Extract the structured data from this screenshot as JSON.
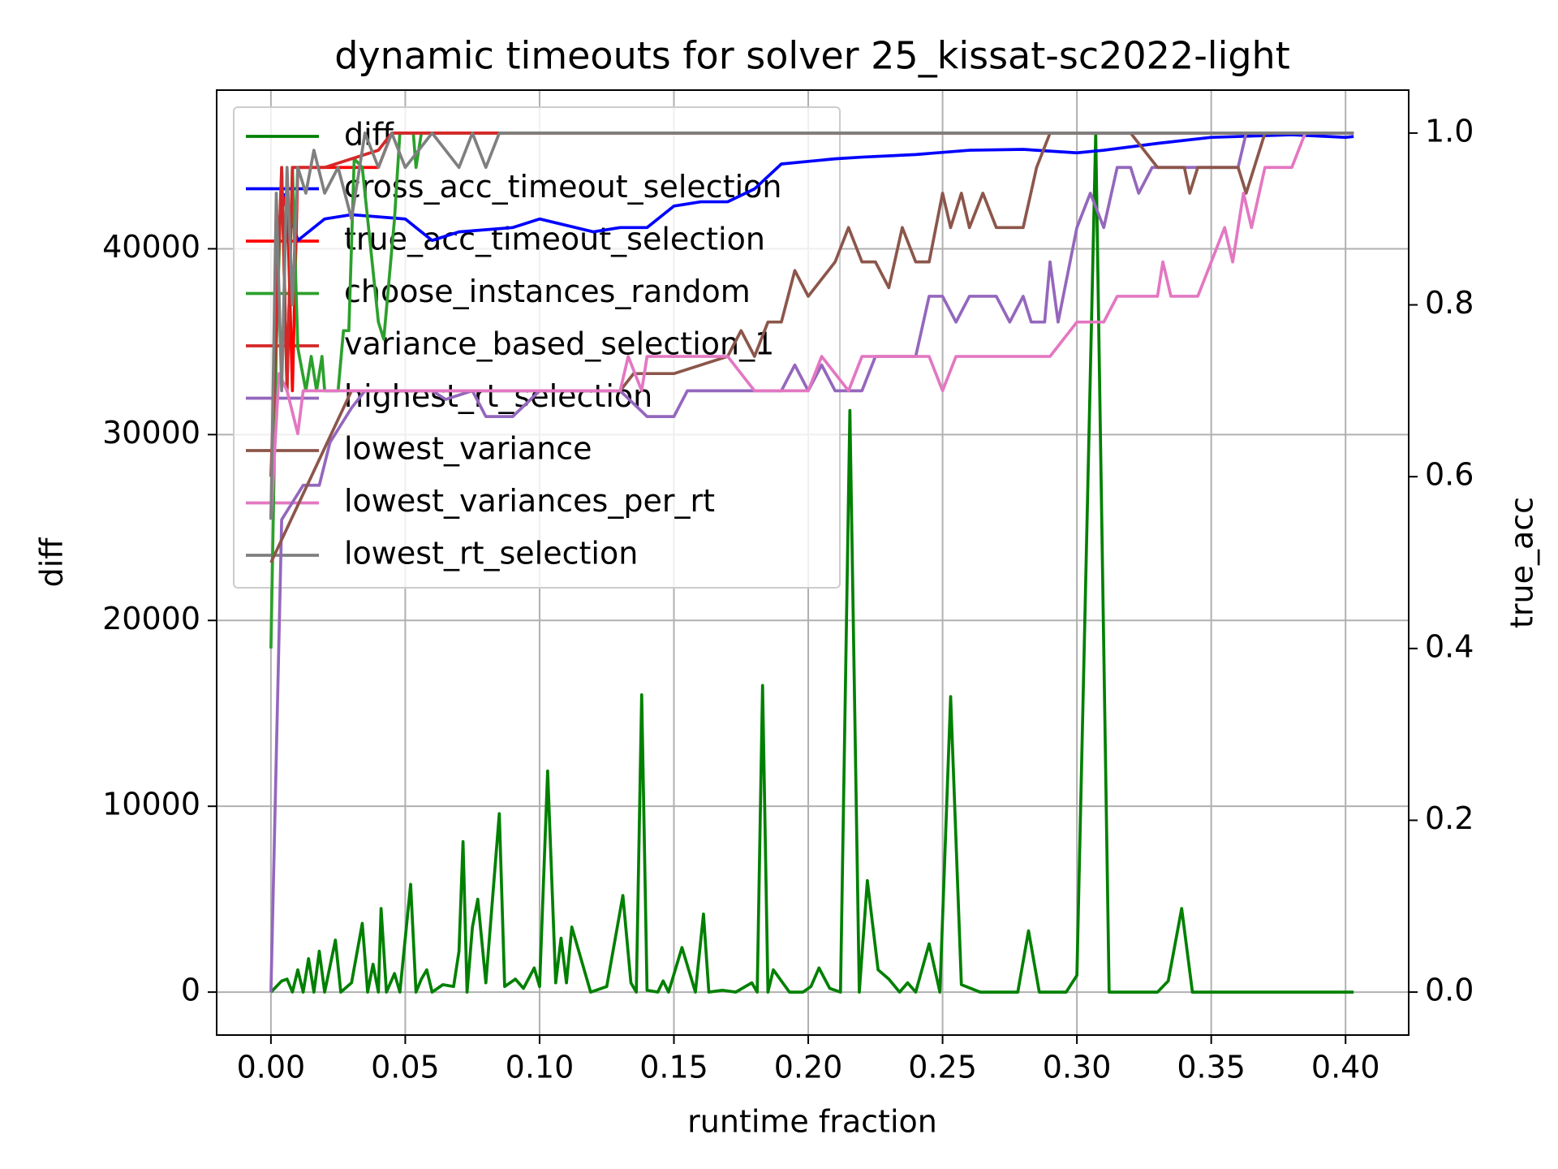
{
  "chart_data": {
    "type": "line",
    "title": "dynamic timeouts for solver 25_kissat-sc2022-light",
    "x_label": "runtime fraction",
    "y_label": "diff",
    "y2_label": "true_acc",
    "y_label_color": "green",
    "y2_label_color": "red",
    "xlim": [
      -0.0202,
      0.4235
    ],
    "ylim": [
      -2311,
      48538
    ],
    "y2lim": [
      -0.05,
      1.05
    ],
    "xticks": [
      {
        "value": 0,
        "label": "0.00"
      },
      {
        "value": 0.05,
        "label": "0.05"
      },
      {
        "value": 0.1,
        "label": "0.10"
      },
      {
        "value": 0.15,
        "label": "0.15"
      },
      {
        "value": 0.2,
        "label": "0.20"
      },
      {
        "value": 0.25,
        "label": "0.25"
      },
      {
        "value": 0.3,
        "label": "0.30"
      },
      {
        "value": 0.35,
        "label": "0.35"
      },
      {
        "value": 0.4,
        "label": "0.40"
      }
    ],
    "yticks": [
      0,
      10000,
      20000,
      30000,
      40000
    ],
    "y2ticks": [
      {
        "value": 0,
        "label": "0.0"
      },
      {
        "value": 0.2,
        "label": "0.2"
      },
      {
        "value": 0.4,
        "label": "0.4"
      },
      {
        "value": 0.6,
        "label": "0.6"
      },
      {
        "value": 0.8,
        "label": "0.8"
      },
      {
        "value": 1.0,
        "label": "1.0"
      }
    ],
    "grid": true,
    "legend": "upper left",
    "series": [
      {
        "name": "diff",
        "color": "#008000",
        "axis": "y",
        "x": [
          0,
          0.002,
          0.004,
          0.006,
          0.008,
          0.01,
          0.012,
          0.014,
          0.016,
          0.018,
          0.02,
          0.024,
          0.026,
          0.03,
          0.034,
          0.036,
          0.038,
          0.04,
          0.041,
          0.043,
          0.046,
          0.048,
          0.052,
          0.054,
          0.056,
          0.058,
          0.06,
          0.064,
          0.068,
          0.07,
          0.0715,
          0.073,
          0.075,
          0.077,
          0.08,
          0.085,
          0.087,
          0.091,
          0.094,
          0.098,
          0.1,
          0.103,
          0.106,
          0.108,
          0.11,
          0.112,
          0.119,
          0.125,
          0.131,
          0.134,
          0.136,
          0.138,
          0.14,
          0.144,
          0.146,
          0.148,
          0.153,
          0.158,
          0.161,
          0.163,
          0.168,
          0.173,
          0.179,
          0.181,
          0.183,
          0.185,
          0.187,
          0.193,
          0.198,
          0.201,
          0.204,
          0.208,
          0.212,
          0.2155,
          0.219,
          0.222,
          0.226,
          0.23,
          0.234,
          0.237,
          0.24,
          0.245,
          0.249,
          0.253,
          0.257,
          0.264,
          0.278,
          0.282,
          0.286,
          0.296,
          0.3,
          0.307,
          0.312,
          0.33,
          0.334,
          0.339,
          0.343,
          0.403
        ],
        "values": [
          0,
          300,
          600,
          700,
          0,
          1200,
          0,
          1800,
          0,
          2200,
          0,
          2800,
          0,
          500,
          3700,
          0,
          1500,
          0,
          4500,
          0,
          1000,
          0,
          5800,
          0,
          700,
          1200,
          0,
          400,
          300,
          2200,
          8100,
          0,
          3500,
          5000,
          500,
          9600,
          300,
          700,
          200,
          1300,
          300,
          11900,
          500,
          2900,
          500,
          3500,
          0,
          300,
          5200,
          500,
          0,
          16000,
          100,
          0,
          600,
          0,
          2400,
          0,
          4200,
          0,
          100,
          0,
          500,
          0,
          16500,
          0,
          1200,
          0,
          0,
          300,
          1300,
          200,
          0,
          31300,
          0,
          6000,
          1200,
          700,
          0,
          500,
          0,
          2600,
          0,
          15900,
          400,
          0,
          0,
          3300,
          0,
          0,
          900,
          46200,
          0,
          0,
          600,
          4500,
          0,
          0
        ]
      },
      {
        "name": "cross_acc_timeout_selection",
        "color": "#0000ff",
        "axis": "y2",
        "x": [
          0.005,
          0.01,
          0.02,
          0.03,
          0.05,
          0.06,
          0.07,
          0.09,
          0.1,
          0.12,
          0.13,
          0.14,
          0.15,
          0.16,
          0.17,
          0.18,
          0.19,
          0.2,
          0.21,
          0.22,
          0.24,
          0.26,
          0.28,
          0.3,
          0.31,
          0.33,
          0.35,
          0.38,
          0.4,
          0.403
        ],
        "values": [
          0.93,
          0.875,
          0.9,
          0.905,
          0.9,
          0.875,
          0.885,
          0.89,
          0.9,
          0.885,
          0.89,
          0.89,
          0.915,
          0.92,
          0.92,
          0.935,
          0.964,
          0.967,
          0.97,
          0.972,
          0.975,
          0.98,
          0.981,
          0.977,
          0.98,
          0.988,
          0.995,
          0.998,
          0.995,
          0.996
        ]
      },
      {
        "name": "true_acc_timeout_selection",
        "color": "#ff0000",
        "axis": "y2",
        "x": [
          0,
          0.003,
          0.006,
          0.008,
          0.01,
          0.02,
          0.03,
          0.04,
          0.045,
          0.403
        ],
        "values": [
          0.55,
          0.9,
          0.93,
          0.7,
          0.96,
          0.96,
          0.96,
          0.96,
          1.0,
          1.0
        ]
      },
      {
        "name": "choose_instances_random",
        "color": "#2ca02c",
        "axis": "y2",
        "x": [
          0,
          0.002,
          0.004,
          0.006,
          0.008,
          0.01,
          0.013,
          0.015,
          0.017,
          0.019,
          0.02,
          0.025,
          0.027,
          0.029,
          0.031,
          0.034,
          0.036,
          0.04,
          0.042,
          0.046,
          0.048,
          0.053,
          0.054,
          0.056,
          0.06,
          0.403
        ],
        "values": [
          0.4,
          0.75,
          0.96,
          0.7,
          0.96,
          0.75,
          0.7,
          0.74,
          0.7,
          0.74,
          0.7,
          0.7,
          0.77,
          0.77,
          0.97,
          0.96,
          0.9,
          0.78,
          0.76,
          0.9,
          1.0,
          1.0,
          0.96,
          1.0,
          1.0,
          1.0
        ]
      },
      {
        "name": "variance_based_selection_1",
        "color": "#d62728",
        "axis": "y2",
        "x": [
          0,
          0.004,
          0.006,
          0.008,
          0.02,
          0.04,
          0.045,
          0.403
        ],
        "values": [
          0.6,
          0.96,
          0.7,
          0.96,
          0.96,
          0.98,
          1.0,
          1.0
        ]
      },
      {
        "name": "highest_rt_selection",
        "color": "#9467bd",
        "axis": "y2",
        "x": [
          0,
          0.004,
          0.008,
          0.012,
          0.018,
          0.022,
          0.026,
          0.03,
          0.035,
          0.06,
          0.065,
          0.075,
          0.08,
          0.09,
          0.1,
          0.13,
          0.14,
          0.15,
          0.155,
          0.19,
          0.195,
          0.2,
          0.205,
          0.21,
          0.22,
          0.225,
          0.24,
          0.245,
          0.25,
          0.255,
          0.26,
          0.27,
          0.275,
          0.28,
          0.283,
          0.288,
          0.29,
          0.293,
          0.3,
          0.305,
          0.31,
          0.315,
          0.32,
          0.323,
          0.328,
          0.36,
          0.363,
          0.403
        ],
        "values": [
          0,
          0.55,
          0.57,
          0.59,
          0.59,
          0.64,
          0.66,
          0.68,
          0.7,
          0.7,
          0.69,
          0.7,
          0.67,
          0.67,
          0.7,
          0.7,
          0.67,
          0.67,
          0.7,
          0.7,
          0.73,
          0.7,
          0.73,
          0.7,
          0.7,
          0.74,
          0.74,
          0.81,
          0.81,
          0.78,
          0.81,
          0.81,
          0.78,
          0.81,
          0.78,
          0.78,
          0.85,
          0.78,
          0.89,
          0.93,
          0.89,
          0.96,
          0.96,
          0.93,
          0.96,
          0.96,
          1.0,
          1.0
        ]
      },
      {
        "name": "lowest_variance",
        "color": "#8c564b",
        "axis": "y2",
        "x": [
          0,
          0.03,
          0.13,
          0.135,
          0.15,
          0.17,
          0.175,
          0.18,
          0.185,
          0.19,
          0.195,
          0.2,
          0.21,
          0.215,
          0.22,
          0.225,
          0.23,
          0.235,
          0.24,
          0.245,
          0.25,
          0.253,
          0.257,
          0.26,
          0.265,
          0.27,
          0.28,
          0.285,
          0.29,
          0.32,
          0.33,
          0.34,
          0.342,
          0.345,
          0.36,
          0.363,
          0.37,
          0.403
        ],
        "values": [
          0.5,
          0.7,
          0.7,
          0.72,
          0.72,
          0.74,
          0.77,
          0.74,
          0.78,
          0.78,
          0.84,
          0.81,
          0.85,
          0.89,
          0.85,
          0.85,
          0.82,
          0.89,
          0.85,
          0.85,
          0.93,
          0.89,
          0.93,
          0.89,
          0.93,
          0.89,
          0.89,
          0.96,
          1.0,
          1.0,
          0.96,
          0.96,
          0.93,
          0.96,
          0.96,
          0.93,
          1.0,
          1.0
        ]
      },
      {
        "name": "lowest_variances_per_rt",
        "color": "#e377c2",
        "axis": "y2",
        "x": [
          0,
          0.003,
          0.006,
          0.01,
          0.012,
          0.02,
          0.13,
          0.133,
          0.138,
          0.14,
          0.17,
          0.18,
          0.2,
          0.205,
          0.215,
          0.22,
          0.245,
          0.25,
          0.255,
          0.29,
          0.3,
          0.31,
          0.315,
          0.33,
          0.332,
          0.335,
          0.345,
          0.35,
          0.355,
          0.358,
          0.362,
          0.365,
          0.37,
          0.38,
          0.385,
          0.403
        ],
        "values": [
          0.55,
          0.72,
          0.7,
          0.65,
          0.7,
          0.7,
          0.7,
          0.74,
          0.7,
          0.74,
          0.74,
          0.7,
          0.7,
          0.74,
          0.7,
          0.74,
          0.74,
          0.7,
          0.74,
          0.74,
          0.78,
          0.78,
          0.81,
          0.81,
          0.85,
          0.81,
          0.81,
          0.85,
          0.89,
          0.85,
          0.93,
          0.89,
          0.96,
          0.96,
          1.0,
          1.0
        ]
      },
      {
        "name": "lowest_rt_selection",
        "color": "#7f7f7f",
        "axis": "y2",
        "x": [
          0,
          0.002,
          0.004,
          0.006,
          0.008,
          0.01,
          0.013,
          0.016,
          0.02,
          0.025,
          0.03,
          0.035,
          0.04,
          0.045,
          0.05,
          0.06,
          0.07,
          0.075,
          0.08,
          0.085,
          0.403
        ],
        "values": [
          0.55,
          0.93,
          0.7,
          0.96,
          0.8,
          0.96,
          0.93,
          0.98,
          0.93,
          0.96,
          0.9,
          1.0,
          0.96,
          1.0,
          0.96,
          1.0,
          0.96,
          1.0,
          0.96,
          1.0,
          1.0
        ]
      }
    ]
  }
}
